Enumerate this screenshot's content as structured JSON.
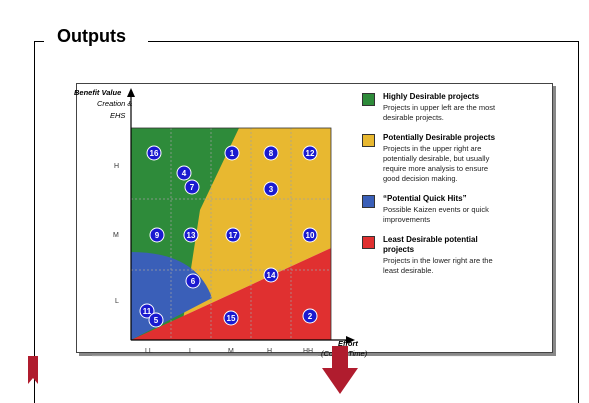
{
  "section": {
    "title": "Outputs"
  },
  "chart": {
    "y_title_line1": "Benefit Value",
    "y_title_line2": "Creation &",
    "y_title_line3": "EHS",
    "x_title_line1": "Effort",
    "x_title_line2": "(Cost & Time)",
    "y_ticks": [
      "H",
      "M",
      "L"
    ],
    "x_ticks": [
      "LL",
      "L",
      "M",
      "H",
      "HH"
    ],
    "projects": [
      "16",
      "1",
      "8",
      "12",
      "4",
      "7",
      "3",
      "9",
      "13",
      "17",
      "10",
      "6",
      "14",
      "11",
      "5",
      "15",
      "2"
    ]
  },
  "legend": [
    {
      "title": "Highly Desirable projects",
      "desc_lines": [
        "Projects in upper left are the most",
        "desirable projects."
      ],
      "color": "#2e8b3a"
    },
    {
      "title": "Potentially Desirable projects",
      "desc_lines": [
        "Projects in the upper right are",
        "potentially desirable, but usually",
        "require more analysis to ensure",
        "good decision making."
      ],
      "color": "#e8b830"
    },
    {
      "title": "“Potential Quick Hits”",
      "desc_lines": [
        "Possible Kaizen events or quick",
        "improvements"
      ],
      "color": "#3a5fb8"
    },
    {
      "title": "Least Desirable potential",
      "title2": "projects",
      "desc_lines": [
        "Projects in the lower right are the",
        "least desirable."
      ],
      "color": "#e03030"
    }
  ],
  "colors": {
    "green": "#2e8b3a",
    "yellow": "#e8b830",
    "blue": "#3a5fb8",
    "red": "#e03030",
    "badge": "#1a1ad0",
    "arrow": "#b01c2e"
  }
}
